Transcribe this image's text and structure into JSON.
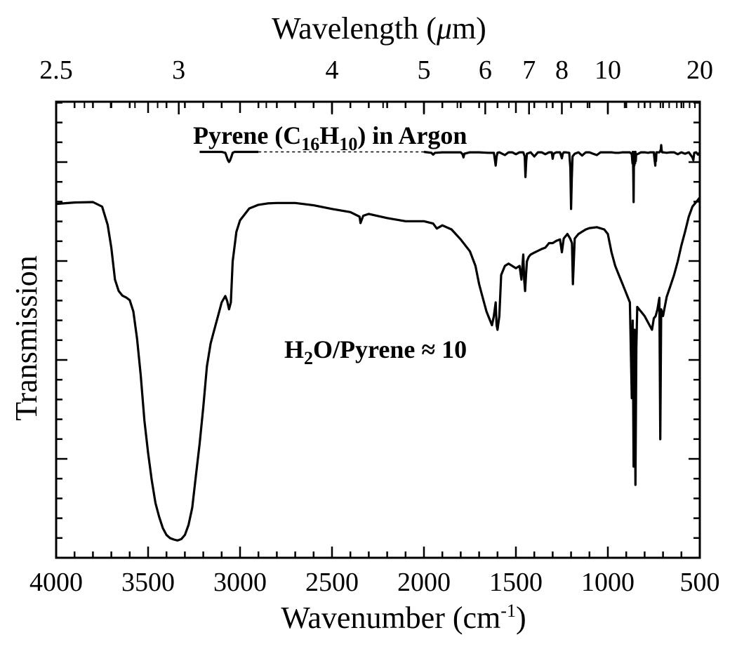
{
  "chart_data": {
    "type": "line",
    "xlabel": "Wavenumber (cm",
    "xlabel_sup": "-1",
    "xlabel_close": ")",
    "x2label": "Wavelength (",
    "x2label_mu": "μ",
    "x2label_unit": "m)",
    "ylabel": "Transmission",
    "xlim": [
      4000,
      500
    ],
    "x_reversed": true,
    "x_ticks": [
      4000,
      3500,
      3000,
      2500,
      2000,
      1500,
      1000,
      500
    ],
    "x_tick_labels": [
      "4000",
      "3500",
      "3000",
      "2500",
      "2000",
      "1500",
      "1000",
      "500"
    ],
    "x2_scale": "reciprocal",
    "x2_ticks": [
      2.5,
      3,
      4,
      5,
      6,
      7,
      8,
      10,
      20
    ],
    "x2_tick_labels": [
      "2.5",
      "3",
      "4",
      "5",
      "6",
      "7",
      "8",
      "10",
      "20"
    ],
    "ylim": [
      0,
      1
    ],
    "y_ticks_shown": false,
    "legend": "none",
    "grid": false,
    "annotations": [
      {
        "parts": [
          {
            "text": "Pyrene (C",
            "sub": false
          },
          {
            "text": "16",
            "sub": true
          },
          {
            "text": "H",
            "sub": false
          },
          {
            "text": "10",
            "sub": true
          },
          {
            "text": ") in Argon",
            "sub": false
          }
        ]
      },
      {
        "parts": [
          {
            "text": "H",
            "sub": false
          },
          {
            "text": "2",
            "sub": true
          },
          {
            "text": "O/Pyrene ≈ 10",
            "sub": false
          }
        ]
      }
    ],
    "series": [
      {
        "x": [
          4000,
          3900,
          3800,
          3750,
          3720,
          3700,
          3680,
          3660,
          3640,
          3620,
          3600,
          3580,
          3560,
          3540,
          3520,
          3500,
          3480,
          3460,
          3440,
          3420,
          3400,
          3380,
          3360,
          3340,
          3320,
          3300,
          3280,
          3260,
          3240,
          3220,
          3200,
          3180,
          3160,
          3140,
          3120,
          3100,
          3080,
          3070,
          3060,
          3050,
          3040,
          3020,
          3000,
          2950,
          2900,
          2850,
          2800,
          2700,
          2600,
          2500,
          2400,
          2350,
          2345,
          2330,
          2300,
          2200,
          2100,
          2000,
          1950,
          1930,
          1900,
          1850,
          1800,
          1750,
          1720,
          1700,
          1680,
          1660,
          1640,
          1630,
          1620,
          1610,
          1605,
          1600,
          1590,
          1580,
          1560,
          1540,
          1520,
          1500,
          1480,
          1470,
          1460,
          1455,
          1450,
          1445,
          1440,
          1430,
          1420,
          1400,
          1380,
          1360,
          1340,
          1320,
          1300,
          1280,
          1260,
          1250,
          1240,
          1230,
          1220,
          1205,
          1195,
          1190,
          1180,
          1160,
          1140,
          1120,
          1100,
          1060,
          1020,
          1000,
          980,
          960,
          940,
          920,
          900,
          880,
          870,
          865,
          860,
          855,
          850,
          845,
          840,
          830,
          820,
          800,
          780,
          760,
          750,
          740,
          730,
          720,
          715,
          710,
          700,
          680,
          660,
          640,
          620,
          600,
          580,
          560,
          540,
          520,
          500
        ],
        "y": [
          0.776,
          0.779,
          0.78,
          0.77,
          0.73,
          0.68,
          0.61,
          0.585,
          0.575,
          0.571,
          0.565,
          0.54,
          0.48,
          0.4,
          0.3,
          0.23,
          0.17,
          0.12,
          0.09,
          0.065,
          0.05,
          0.043,
          0.04,
          0.038,
          0.041,
          0.05,
          0.072,
          0.11,
          0.18,
          0.25,
          0.33,
          0.42,
          0.47,
          0.5,
          0.53,
          0.56,
          0.574,
          0.563,
          0.545,
          0.56,
          0.65,
          0.715,
          0.74,
          0.766,
          0.774,
          0.777,
          0.778,
          0.778,
          0.773,
          0.765,
          0.758,
          0.748,
          0.734,
          0.75,
          0.754,
          0.745,
          0.738,
          0.738,
          0.733,
          0.722,
          0.729,
          0.72,
          0.698,
          0.672,
          0.64,
          0.6,
          0.57,
          0.54,
          0.52,
          0.51,
          0.53,
          0.56,
          0.51,
          0.5,
          0.53,
          0.62,
          0.64,
          0.645,
          0.64,
          0.635,
          0.64,
          0.61,
          0.665,
          0.61,
          0.585,
          0.62,
          0.65,
          0.66,
          0.665,
          0.669,
          0.673,
          0.677,
          0.68,
          0.69,
          0.69,
          0.695,
          0.698,
          0.67,
          0.7,
          0.705,
          0.71,
          0.7,
          0.69,
          0.6,
          0.7,
          0.71,
          0.715,
          0.72,
          0.723,
          0.725,
          0.72,
          0.71,
          0.67,
          0.64,
          0.62,
          0.6,
          0.58,
          0.56,
          0.35,
          0.52,
          0.2,
          0.5,
          0.16,
          0.46,
          0.55,
          0.545,
          0.54,
          0.53,
          0.515,
          0.5,
          0.525,
          0.53,
          0.545,
          0.57,
          0.26,
          0.545,
          0.53,
          0.572,
          0.596,
          0.62,
          0.65,
          0.685,
          0.715,
          0.748,
          0.77,
          0.78,
          0.79
        ]
      },
      {
        "x": [
          3220,
          3100,
          3080,
          3075,
          3070,
          3065,
          3060,
          3055,
          3050,
          3045,
          3040,
          3030,
          3000,
          2950,
          2900
        ],
        "y": [
          0.89,
          0.89,
          0.888,
          0.882,
          0.876,
          0.871,
          0.868,
          0.871,
          0.876,
          0.882,
          0.888,
          0.89,
          0.89,
          0.89,
          0.89
        ]
      },
      {
        "x": [
          2900,
          2000
        ],
        "y": [
          0.89,
          0.89
        ],
        "dashed": true
      },
      {
        "x": [
          2000,
          1960,
          1950,
          1940,
          1900,
          1850,
          1800,
          1790,
          1785,
          1780,
          1750,
          1700,
          1650,
          1620,
          1615,
          1610,
          1605,
          1600,
          1590,
          1560,
          1540,
          1520,
          1500,
          1480,
          1460,
          1452,
          1448,
          1444,
          1440,
          1420,
          1400,
          1380,
          1360,
          1340,
          1320,
          1305,
          1300,
          1295,
          1280,
          1260,
          1250,
          1245,
          1240,
          1230,
          1210,
          1204,
          1200,
          1196,
          1192,
          1180,
          1160,
          1140,
          1120,
          1100,
          1080,
          1060,
          1040,
          1020,
          1000,
          980,
          960,
          940,
          920,
          900,
          880,
          870,
          866,
          864,
          862,
          860,
          858,
          856,
          854,
          852,
          850,
          848,
          846,
          840,
          820,
          800,
          780,
          770,
          760,
          750,
          745,
          742,
          740,
          738,
          736,
          734,
          730,
          720,
          715,
          712,
          710,
          708,
          706,
          704,
          700,
          680,
          660,
          640,
          620,
          600,
          580,
          560,
          540,
          535,
          530,
          520,
          510,
          500
        ],
        "y": [
          0.89,
          0.888,
          0.884,
          0.888,
          0.889,
          0.889,
          0.889,
          0.885,
          0.878,
          0.886,
          0.889,
          0.889,
          0.888,
          0.888,
          0.875,
          0.86,
          0.88,
          0.888,
          0.889,
          0.883,
          0.889,
          0.889,
          0.885,
          0.889,
          0.889,
          0.88,
          0.835,
          0.87,
          0.886,
          0.889,
          0.88,
          0.889,
          0.889,
          0.885,
          0.889,
          0.889,
          0.875,
          0.886,
          0.889,
          0.889,
          0.876,
          0.886,
          0.889,
          0.889,
          0.888,
          0.855,
          0.765,
          0.83,
          0.88,
          0.886,
          0.889,
          0.882,
          0.889,
          0.889,
          0.886,
          0.883,
          0.889,
          0.889,
          0.889,
          0.889,
          0.888,
          0.888,
          0.889,
          0.889,
          0.889,
          0.885,
          0.865,
          0.89,
          0.845,
          0.78,
          0.88,
          0.86,
          0.89,
          0.865,
          0.89,
          0.87,
          0.885,
          0.885,
          0.889,
          0.889,
          0.888,
          0.889,
          0.889,
          0.889,
          0.87,
          0.86,
          0.885,
          0.87,
          0.889,
          0.889,
          0.889,
          0.889,
          0.892,
          0.896,
          0.905,
          0.896,
          0.89,
          0.889,
          0.889,
          0.888,
          0.889,
          0.889,
          0.885,
          0.889,
          0.886,
          0.889,
          0.878,
          0.872,
          0.888,
          0.889,
          0.884,
          0.889
        ]
      }
    ]
  }
}
